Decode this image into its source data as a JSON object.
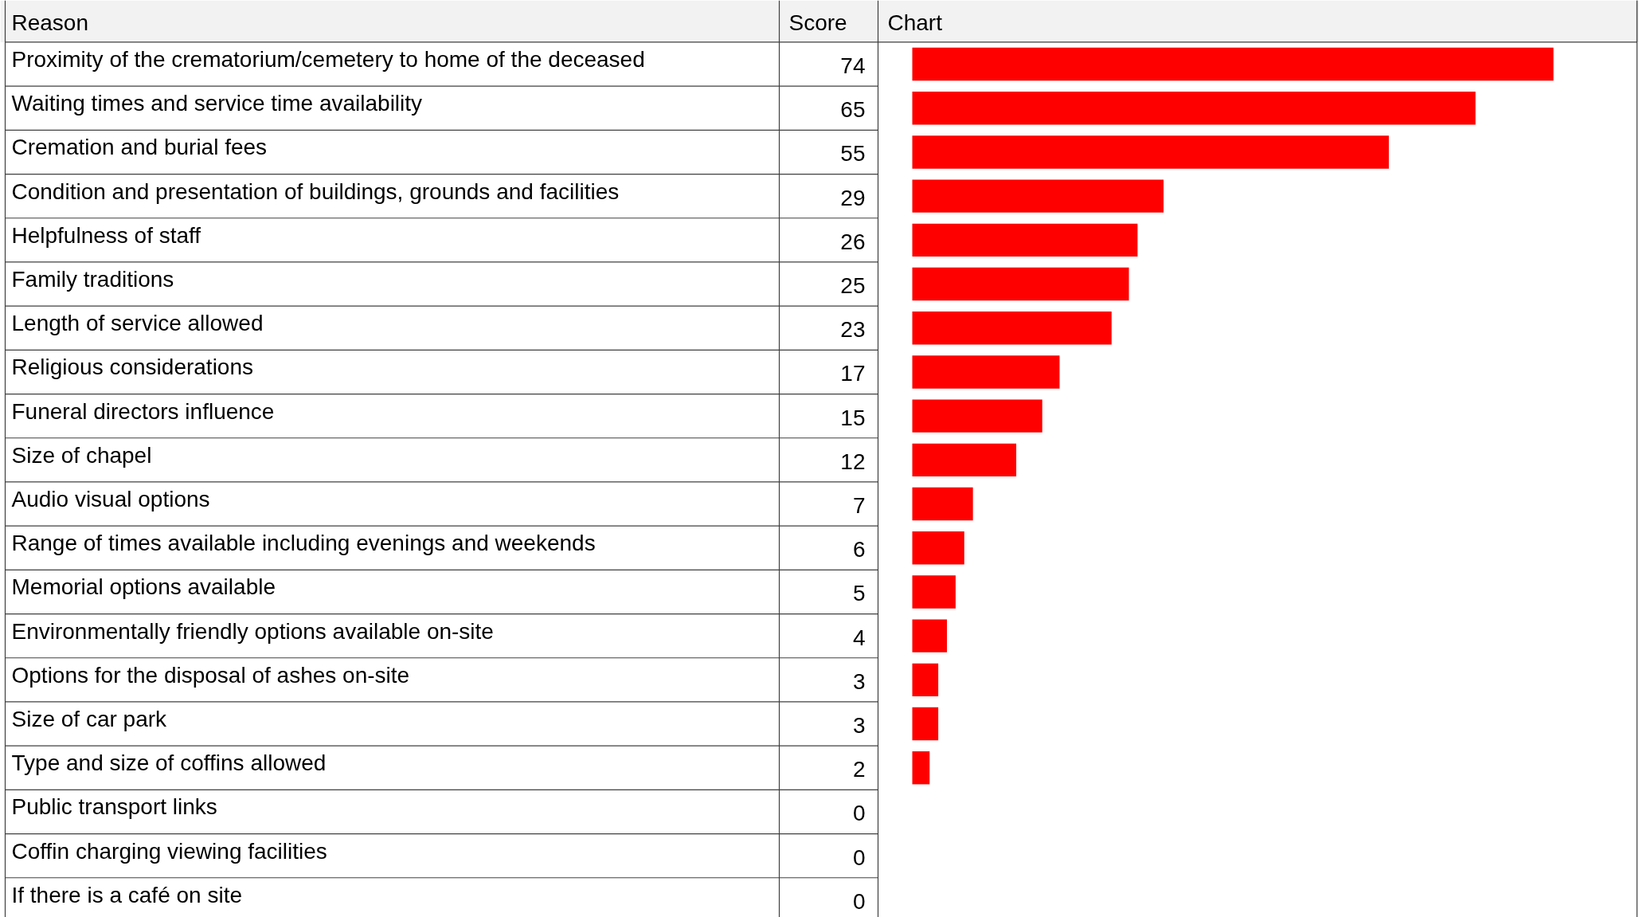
{
  "chart_data": {
    "type": "bar",
    "orientation": "horizontal",
    "categories": [
      "Proximity of the crematorium/cemetery to home of the deceased",
      "Waiting times and service time availability",
      "Cremation and burial fees",
      "Condition and presentation of buildings, grounds and facilities",
      "Helpfulness of staff",
      "Family traditions",
      "Length of service allowed",
      "Religious considerations",
      "Funeral directors influence",
      "Size of chapel",
      "Audio visual options",
      "Range of times available including evenings and weekends",
      "Memorial options available",
      "Environmentally friendly options available on-site",
      "Options for the disposal of ashes on-site",
      "Size of car park",
      "Type and size of coffins allowed",
      "Public transport links",
      "Coffin charging viewing facilities",
      "If there is a café on site"
    ],
    "values": [
      74,
      65,
      55,
      29,
      26,
      25,
      23,
      17,
      15,
      12,
      7,
      6,
      5,
      4,
      3,
      3,
      2,
      0,
      0,
      0
    ],
    "color": "#ff0000",
    "data_labels": true,
    "annotations": [
      "Reason",
      "Score",
      "Chart"
    ]
  }
}
